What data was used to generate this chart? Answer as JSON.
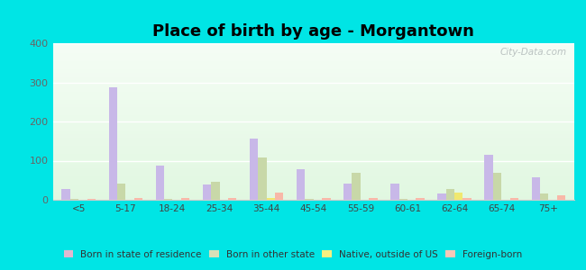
{
  "title": "Place of birth by age - Morgantown",
  "categories": [
    "<5",
    "5-17",
    "18-24",
    "25-34",
    "35-44",
    "45-54",
    "55-59",
    "60-61",
    "62-64",
    "65-74",
    "75+"
  ],
  "series": {
    "Born in state of residence": [
      28,
      288,
      88,
      38,
      157,
      78,
      42,
      42,
      15,
      115,
      58
    ],
    "Born in other state": [
      3,
      42,
      3,
      45,
      107,
      3,
      68,
      3,
      28,
      68,
      15
    ],
    "Native, outside of US": [
      1,
      1,
      1,
      1,
      5,
      1,
      1,
      1,
      18,
      1,
      1
    ],
    "Foreign-born": [
      2,
      4,
      4,
      4,
      18,
      4,
      4,
      4,
      4,
      4,
      12
    ]
  },
  "colors": {
    "Born in state of residence": "#c8b8e8",
    "Born in other state": "#c8d8a8",
    "Native, outside of US": "#f0e870",
    "Foreign-born": "#f8b8a8"
  },
  "legend_colors": {
    "Born in state of residence": "#e0b8d0",
    "Born in other state": "#d8e0b8",
    "Native, outside of US": "#f8f080",
    "Foreign-born": "#f8c8b8"
  },
  "ylim": [
    0,
    400
  ],
  "yticks": [
    0,
    100,
    200,
    300,
    400
  ],
  "figure_bg": "#00e5e5",
  "bar_width": 0.18,
  "title_fontsize": 13,
  "watermark": "City-Data.com"
}
